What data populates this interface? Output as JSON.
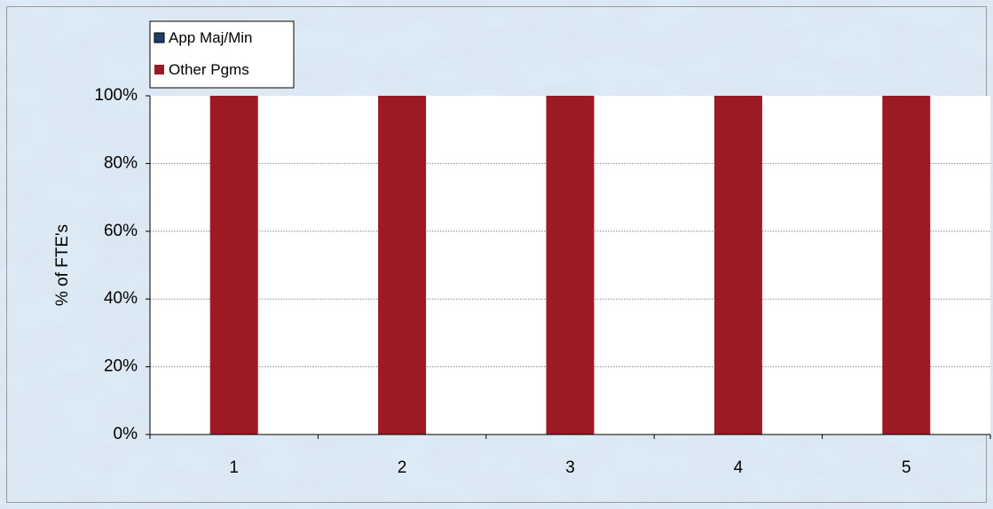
{
  "chart_data": {
    "type": "bar",
    "stacked": true,
    "categories": [
      "1",
      "2",
      "3",
      "4",
      "5"
    ],
    "series": [
      {
        "name": "App Maj/Min",
        "values": [
          0,
          0,
          0,
          0,
          0
        ],
        "color": "#1f3d6b"
      },
      {
        "name": "Other Pgms",
        "values": [
          100,
          100,
          100,
          100,
          100
        ],
        "color": "#9b1a24"
      }
    ],
    "title": "",
    "xlabel": "",
    "ylabel": "% of FTE's",
    "ylim": [
      0,
      100
    ],
    "yticks": [
      "0%",
      "20%",
      "40%",
      "60%",
      "80%",
      "100%"
    ],
    "grid": true,
    "legend_position": "top-left",
    "background": "light-blue-marble",
    "plot_background": "#ffffff"
  }
}
